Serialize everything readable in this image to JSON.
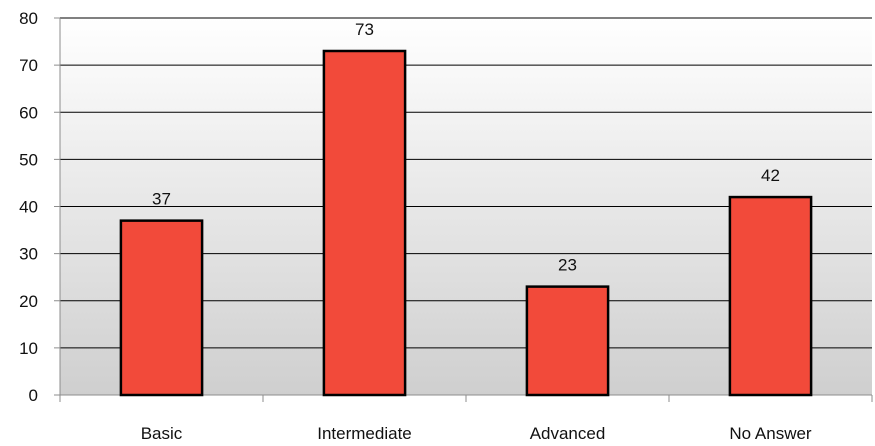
{
  "chart_data": {
    "type": "bar",
    "title": "",
    "xlabel": "",
    "ylabel": "",
    "categories": [
      "Basic",
      "Intermediate",
      "Advanced",
      "No Answer"
    ],
    "values": [
      37,
      73,
      23,
      42
    ],
    "data_labels": [
      "37",
      "73",
      "23",
      "42"
    ],
    "ylim": [
      0,
      80
    ],
    "yticks": [
      0,
      10,
      20,
      30,
      40,
      50,
      60,
      70,
      80
    ],
    "ytick_labels": [
      "0",
      "10",
      "20",
      "30",
      "40",
      "50",
      "60",
      "70",
      "80"
    ],
    "grid": true,
    "legend": "none",
    "colors": {
      "bar_fill": "#f24a3a",
      "bar_stroke": "#000000",
      "gridline": "#000000",
      "plot_bg_top": "#ffffff",
      "plot_bg_bottom": "#cfcfcf",
      "axis": "#8c8c8c"
    }
  }
}
